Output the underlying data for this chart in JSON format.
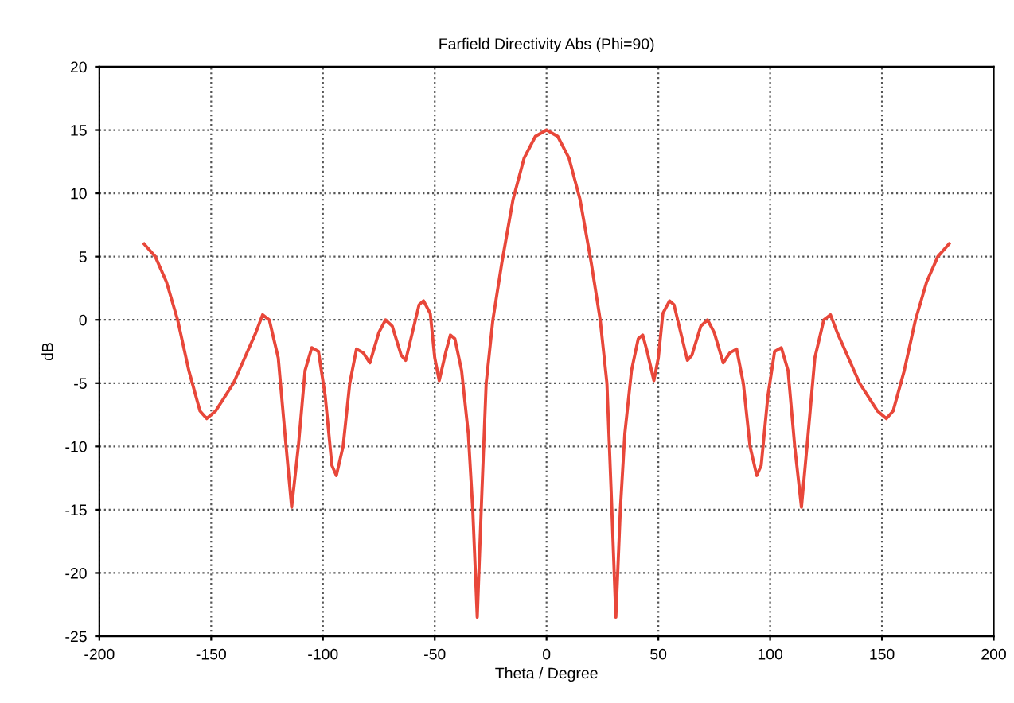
{
  "chart_data": {
    "type": "line",
    "title": "Farfield Directivity Abs (Phi=90)",
    "xlabel": "Theta / Degree",
    "ylabel": "dB",
    "x": [
      -180,
      -175,
      -170,
      -165,
      -160,
      -155,
      -152,
      -148,
      -140,
      -135,
      -130,
      -127,
      -124,
      -120,
      -117,
      -114,
      -111,
      -108,
      -105,
      -102,
      -99,
      -96,
      -94,
      -91,
      -88,
      -85,
      -82,
      -79,
      -75,
      -72,
      -69,
      -65,
      -63,
      -60,
      -57,
      -55,
      -52,
      -50,
      -48,
      -45,
      -43,
      -41,
      -38,
      -35,
      -33,
      -31,
      -29,
      -27,
      -24,
      -20,
      -15,
      -10,
      -5,
      0,
      5,
      10,
      15,
      20,
      24,
      27,
      29,
      31,
      33,
      35,
      38,
      41,
      43,
      45,
      48,
      50,
      52,
      55,
      57,
      60,
      63,
      65,
      69,
      72,
      75,
      79,
      82,
      85,
      88,
      91,
      94,
      96,
      99,
      102,
      105,
      108,
      111,
      114,
      117,
      120,
      124,
      127,
      130,
      135,
      140,
      148,
      152,
      155,
      160,
      165,
      170,
      175,
      180
    ],
    "series": [
      {
        "color": "#e8473a",
        "values": [
          6,
          5,
          3,
          0,
          -4,
          -7.2,
          -7.8,
          -7.2,
          -5,
          -3,
          -1,
          0.4,
          0,
          -3,
          -9,
          -14.8,
          -10,
          -4,
          -2.2,
          -2.5,
          -6,
          -11.5,
          -12.3,
          -10,
          -5,
          -2.3,
          -2.6,
          -3.4,
          -1,
          0,
          -0.5,
          -2.8,
          -3.2,
          -1,
          1.2,
          1.5,
          0.5,
          -3,
          -4.8,
          -2.5,
          -1.2,
          -1.5,
          -4,
          -9,
          -15,
          -23.5,
          -14,
          -5,
          0,
          4.5,
          9.5,
          12.8,
          14.5,
          15,
          14.5,
          12.8,
          9.5,
          4.5,
          0,
          -5,
          -14,
          -23.5,
          -15,
          -9,
          -4,
          -1.5,
          -1.2,
          -2.5,
          -4.8,
          -3,
          0.5,
          1.5,
          1.2,
          -1,
          -3.2,
          -2.8,
          -0.5,
          0,
          -1,
          -3.4,
          -2.6,
          -2.3,
          -5,
          -10,
          -12.3,
          -11.5,
          -6,
          -2.5,
          -2.2,
          -4,
          -10,
          -14.8,
          -9,
          -3,
          0,
          0.4,
          -1,
          -3,
          -5,
          -7.2,
          -7.8,
          -7.2,
          -4,
          0,
          3,
          5,
          6
        ]
      }
    ],
    "xlim": [
      -200,
      200
    ],
    "xticks": [
      -200,
      -150,
      -100,
      -50,
      0,
      50,
      100,
      150,
      200
    ],
    "ylim": [
      -25,
      20
    ],
    "yticks": [
      -25,
      -20,
      -15,
      -10,
      -5,
      0,
      5,
      10,
      15,
      20
    ],
    "grid": true,
    "line_style": "solid",
    "marker": "none"
  }
}
